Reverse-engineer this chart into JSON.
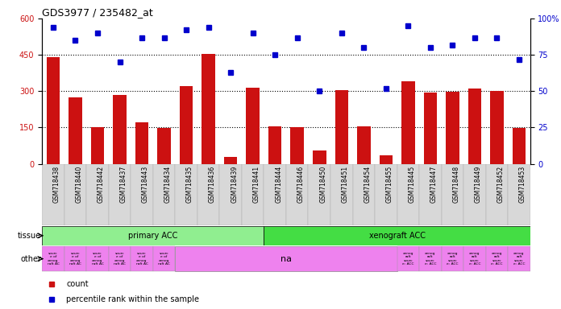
{
  "title": "GDS3977 / 235482_at",
  "samples": [
    "GSM718438",
    "GSM718440",
    "GSM718442",
    "GSM718437",
    "GSM718443",
    "GSM718434",
    "GSM718435",
    "GSM718436",
    "GSM718439",
    "GSM718441",
    "GSM718444",
    "GSM718446",
    "GSM718450",
    "GSM718451",
    "GSM718454",
    "GSM718455",
    "GSM718445",
    "GSM718447",
    "GSM718448",
    "GSM718449",
    "GSM718452",
    "GSM718453"
  ],
  "counts": [
    440,
    275,
    150,
    285,
    170,
    148,
    320,
    455,
    28,
    315,
    155,
    150,
    55,
    305,
    155,
    35,
    340,
    295,
    298,
    310,
    300,
    148
  ],
  "percentile": [
    94,
    85,
    90,
    70,
    87,
    87,
    92,
    94,
    63,
    90,
    75,
    87,
    50,
    90,
    80,
    52,
    95,
    80,
    82,
    87,
    87,
    72
  ],
  "tissue_groups": [
    {
      "label": "primary ACC",
      "start": 0,
      "end": 10,
      "color": "#90ee90"
    },
    {
      "label": "xenograft ACC",
      "start": 10,
      "end": 22,
      "color": "#44dd44"
    }
  ],
  "bar_color": "#cc1111",
  "dot_color": "#0000cc",
  "ylim_left": [
    0,
    600
  ],
  "ylim_right": [
    0,
    100
  ],
  "yticks_left": [
    0,
    150,
    300,
    450,
    600
  ],
  "yticks_right": [
    0,
    25,
    50,
    75,
    100
  ],
  "grid_values": [
    150,
    300,
    450
  ],
  "bg_color": "#ffffff",
  "tick_label_color_left": "#cc1111",
  "tick_label_color_right": "#0000cc",
  "xticklabel_bg": "#d8d8d8",
  "tissue_border_color": "#000000",
  "other_pink": "#ee82ee",
  "other_na_text": "na",
  "legend_count_label": "count",
  "legend_pct_label": "percentile rank within the sample"
}
